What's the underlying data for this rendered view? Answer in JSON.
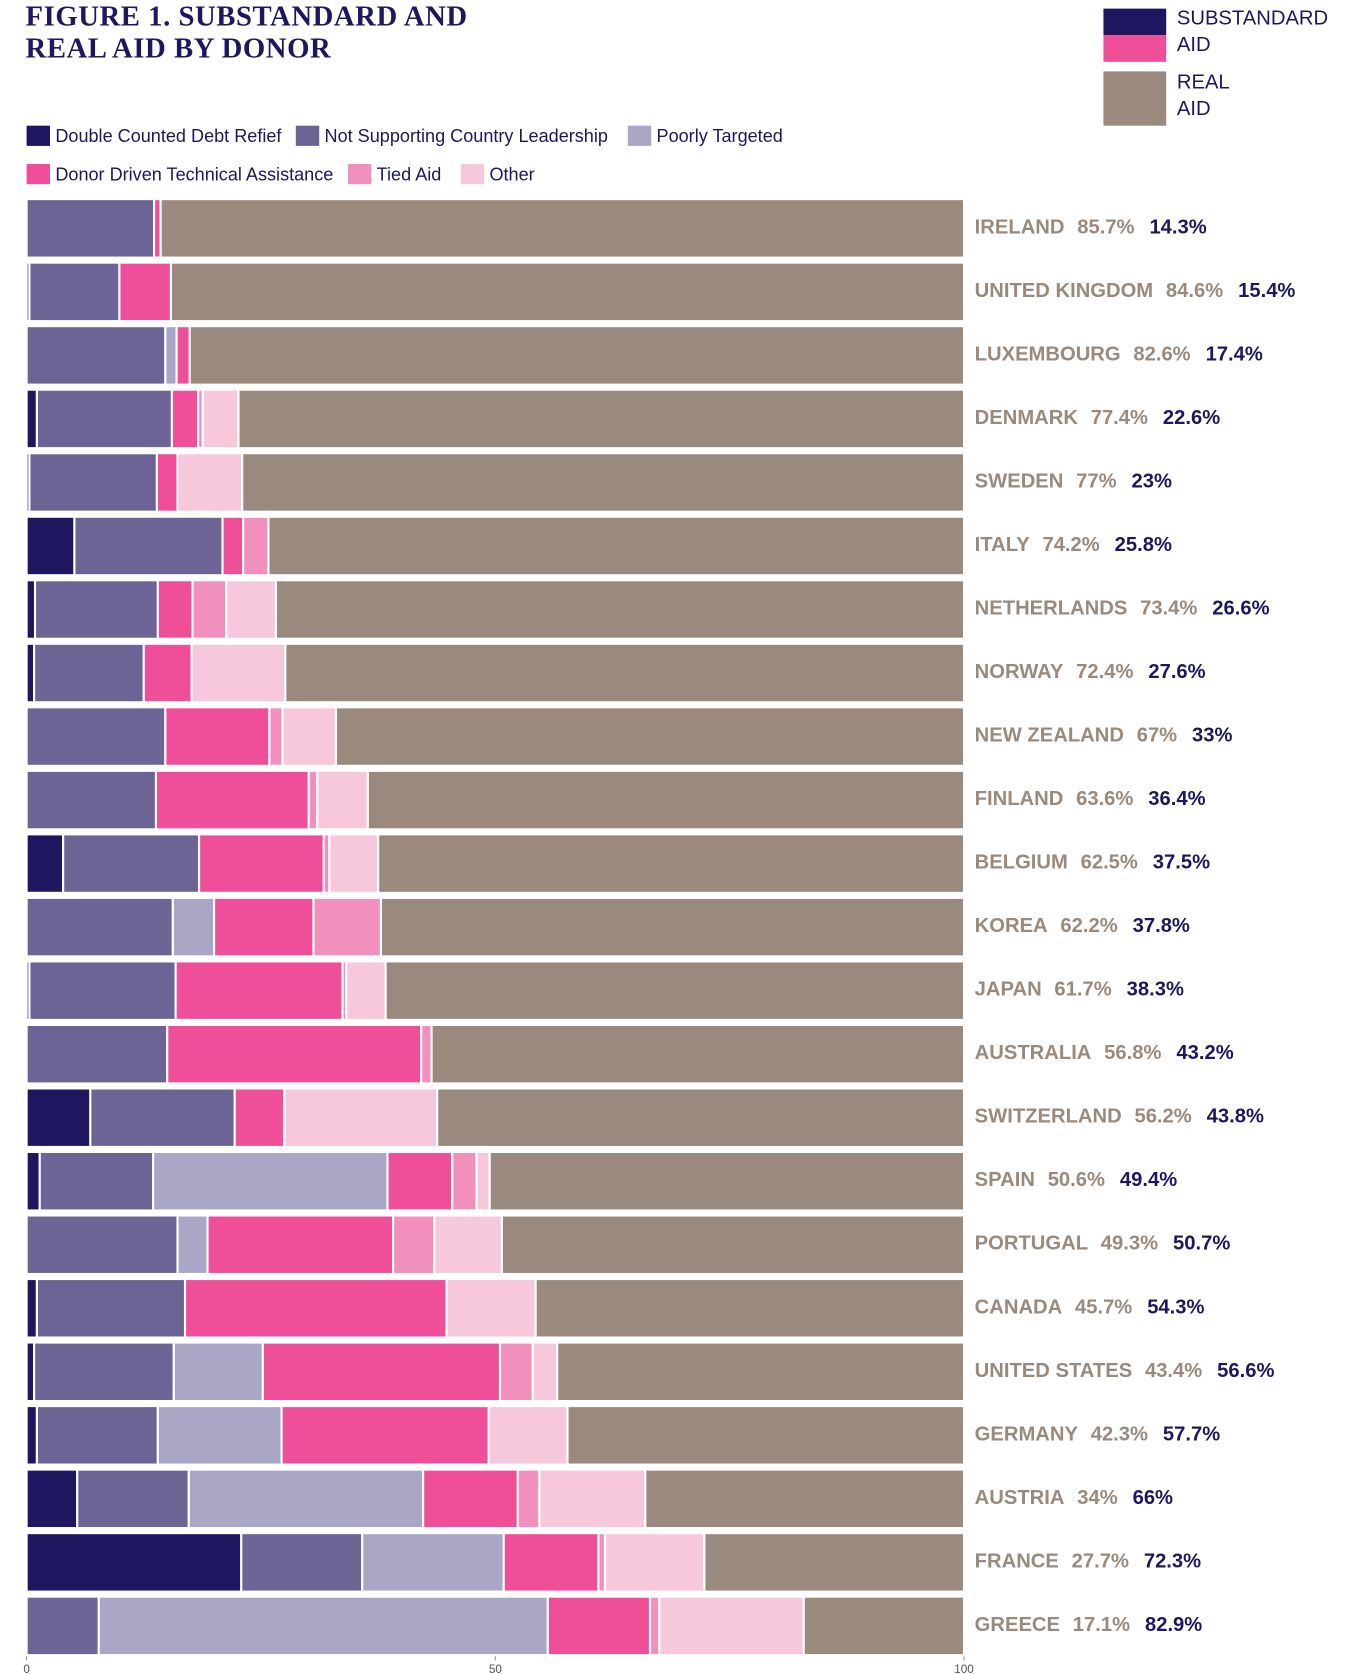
{
  "chart_data": {
    "type": "stacked-bar-horizontal",
    "title": "FIGURE 1. SUBSTANDARD AND REAL AID BY DONOR",
    "categories": [
      "IRELAND",
      "UNITED KINGDOM",
      "LUXEMBOURG",
      "DENMARK",
      "SWEDEN",
      "ITALY",
      "NETHERLANDS",
      "NORWAY",
      "NEW ZEALAND",
      "FINLAND",
      "BELGIUM",
      "KOREA",
      "JAPAN",
      "AUSTRALIA",
      "SWITZERLAND",
      "SPAIN",
      "PORTUGAL",
      "CANADA",
      "UNITED STATES",
      "GERMANY",
      "AUSTRIA",
      "FRANCE",
      "GREECE"
    ],
    "series": [
      {
        "name": "Double Counted Debt Refief",
        "color": "#1e1760",
        "values": [
          0,
          0.3,
          0,
          1.1,
          0.3,
          5.1,
          0.9,
          0.8,
          0,
          0,
          3.9,
          0,
          0.3,
          0,
          6.8,
          1.4,
          0,
          1.1,
          0.8,
          1.1,
          5.4,
          22.9,
          0
        ]
      },
      {
        "name": "Not Supporting Country Leadership",
        "color": "#6b6494",
        "values": [
          13.6,
          9.6,
          14.8,
          14.4,
          13.6,
          15.8,
          13.1,
          11.7,
          14.8,
          13.8,
          14.5,
          15.6,
          15.6,
          15.0,
          15.4,
          12.1,
          16.1,
          15.8,
          14.9,
          12.9,
          11.9,
          12.9,
          7.7
        ]
      },
      {
        "name": "Poorly Targeted",
        "color": "#aaa7c6",
        "values": [
          0,
          0,
          1.2,
          0,
          0,
          0,
          0,
          0,
          0,
          0,
          0,
          4.4,
          0,
          0,
          0,
          25.0,
          3.2,
          0,
          9.5,
          13.2,
          25.0,
          15.1,
          47.9
        ]
      },
      {
        "name": "Donor Driven Technical Assistance",
        "color": "#ee4f98",
        "values": [
          0.7,
          5.5,
          1.4,
          2.8,
          2.2,
          2.2,
          3.7,
          5.1,
          11.1,
          16.3,
          13.3,
          10.6,
          17.8,
          27.1,
          5.3,
          6.9,
          19.8,
          27.9,
          25.3,
          22.1,
          10.1,
          10.1,
          10.9
        ]
      },
      {
        "name": "Tied Aid",
        "color": "#f290bd",
        "values": [
          0,
          0,
          0,
          0.5,
          0,
          2.7,
          3.6,
          0,
          1.4,
          0.9,
          0.6,
          7.2,
          0.4,
          1.1,
          0,
          2.6,
          4.4,
          0,
          3.5,
          0,
          2.3,
          0.7,
          1.0
        ]
      },
      {
        "name": "Other",
        "color": "#f7c8dc",
        "values": [
          0,
          0,
          0,
          3.8,
          6.9,
          0,
          5.3,
          10.0,
          5.7,
          5.4,
          5.2,
          0,
          4.2,
          0,
          16.3,
          1.4,
          7.2,
          9.5,
          2.6,
          8.4,
          11.3,
          10.6,
          15.4
        ]
      }
    ],
    "real_aid": {
      "name": "REAL AID",
      "color": "#9a8a7e",
      "values": [
        85.7,
        84.6,
        82.6,
        77.4,
        77,
        74.2,
        73.4,
        72.4,
        67,
        63.6,
        62.5,
        62.2,
        61.7,
        56.8,
        56.2,
        50.6,
        49.3,
        45.7,
        43.4,
        42.3,
        34,
        27.7,
        17.1
      ],
      "value_labels": [
        "85.7%",
        "84.6%",
        "82.6%",
        "77.4%",
        "77%",
        "74.2%",
        "73.4%",
        "72.4%",
        "67%",
        "63.6%",
        "62.5%",
        "62.2%",
        "61.7%",
        "56.8%",
        "56.2%",
        "50.6%",
        "49.3%",
        "45.7%",
        "43.4%",
        "42.3%",
        "34%",
        "27.7%",
        "17.1%"
      ]
    },
    "substandard_aid": {
      "name": "SUBSTANDARD AID",
      "colors": [
        "#1e1760",
        "#ee4f98"
      ],
      "values": [
        14.3,
        15.4,
        17.4,
        22.6,
        23,
        25.8,
        26.6,
        27.6,
        33,
        36.4,
        37.5,
        37.8,
        38.3,
        43.2,
        43.8,
        49.4,
        50.7,
        54.3,
        56.6,
        57.7,
        66,
        72.3,
        82.9
      ],
      "value_labels": [
        "14.3%",
        "15.4%",
        "17.4%",
        "22.6%",
        "23%",
        "25.8%",
        "26.6%",
        "27.6%",
        "33%",
        "36.4%",
        "37.5%",
        "37.8%",
        "38.3%",
        "43.2%",
        "43.8%",
        "49.4%",
        "50.7%",
        "54.3%",
        "56.6%",
        "57.7%",
        "66%",
        "72.3%",
        "82.9%"
      ]
    },
    "xlim": [
      0,
      100
    ],
    "xticks": [
      0,
      50,
      100
    ]
  }
}
